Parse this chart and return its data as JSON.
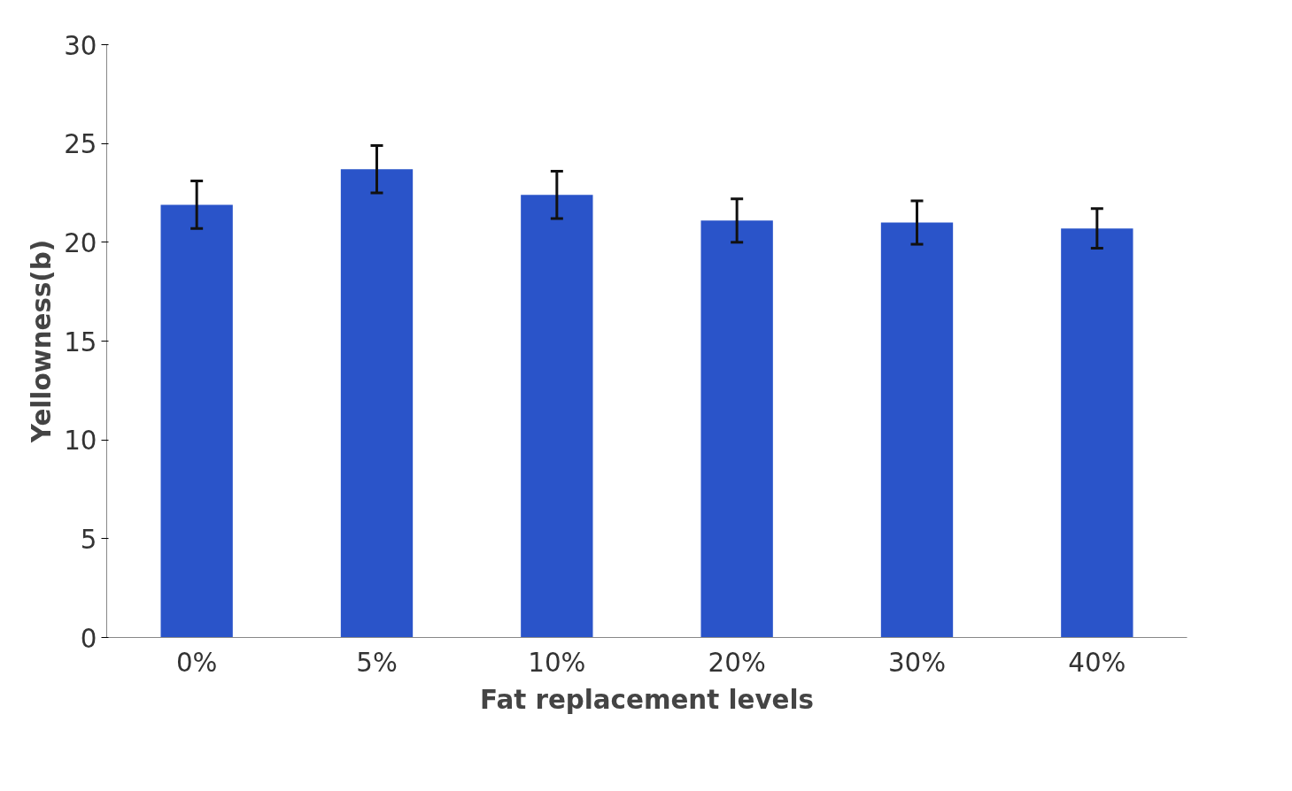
{
  "chart_data": {
    "type": "bar",
    "xlabel": "Fat replacement levels",
    "ylabel": "Yellowness(b)",
    "categories": [
      "0%",
      "5%",
      "10%",
      "20%",
      "30%",
      "40%"
    ],
    "values": [
      21.9,
      23.7,
      22.4,
      21.1,
      21.0,
      20.7
    ],
    "errors": [
      1.2,
      1.2,
      1.2,
      1.1,
      1.1,
      1.0
    ],
    "color": "#2a54c9",
    "ylim": [
      0,
      30
    ],
    "yticks": [
      0,
      5,
      10,
      15,
      20,
      25,
      30
    ],
    "grid": false
  }
}
